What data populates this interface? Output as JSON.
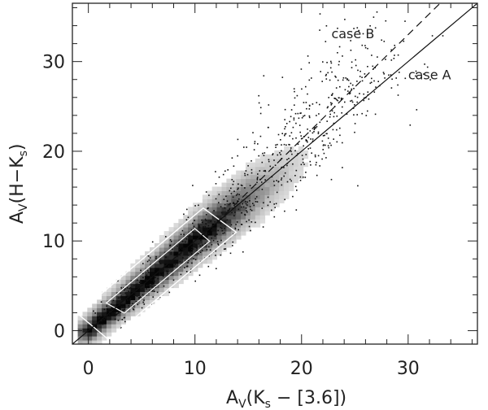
{
  "chart_data": {
    "type": "scatter",
    "title": "",
    "xlabel": {
      "main": "A",
      "sub": "V",
      "rest": "(K",
      "sub2": "s",
      "tail": " − [3.6])"
    },
    "ylabel": {
      "main": "A",
      "sub": "V",
      "rest": "(H−K",
      "sub2": "s",
      "tail": ")"
    },
    "xlim": [
      -1.5,
      36.5
    ],
    "ylim": [
      -1.5,
      36.5
    ],
    "xticks": [
      0,
      10,
      20,
      30
    ],
    "yticks": [
      0,
      10,
      20,
      30
    ],
    "xtick_labels": [
      "0",
      "10",
      "20",
      "30"
    ],
    "ytick_labels": [
      "0",
      "10",
      "20",
      "30"
    ],
    "grid": false,
    "lines": [
      {
        "name": "case A",
        "style": "solid",
        "x": [
          -1.5,
          36.5
        ],
        "y": [
          -1.5,
          36.5
        ]
      },
      {
        "name": "case B",
        "style": "dashed",
        "x": [
          12,
          33
        ],
        "y": [
          12,
          36.5
        ]
      }
    ],
    "annotations": [
      {
        "text": "case B",
        "x": 22.8,
        "y": 32.6
      },
      {
        "text": "case A",
        "x": 30.0,
        "y": 28.0
      }
    ],
    "density": {
      "description_points": "dense core along y≈x from 0 to 12, sparse points up to ~28",
      "core_x": [
        0,
        13
      ],
      "contour": "white"
    }
  }
}
